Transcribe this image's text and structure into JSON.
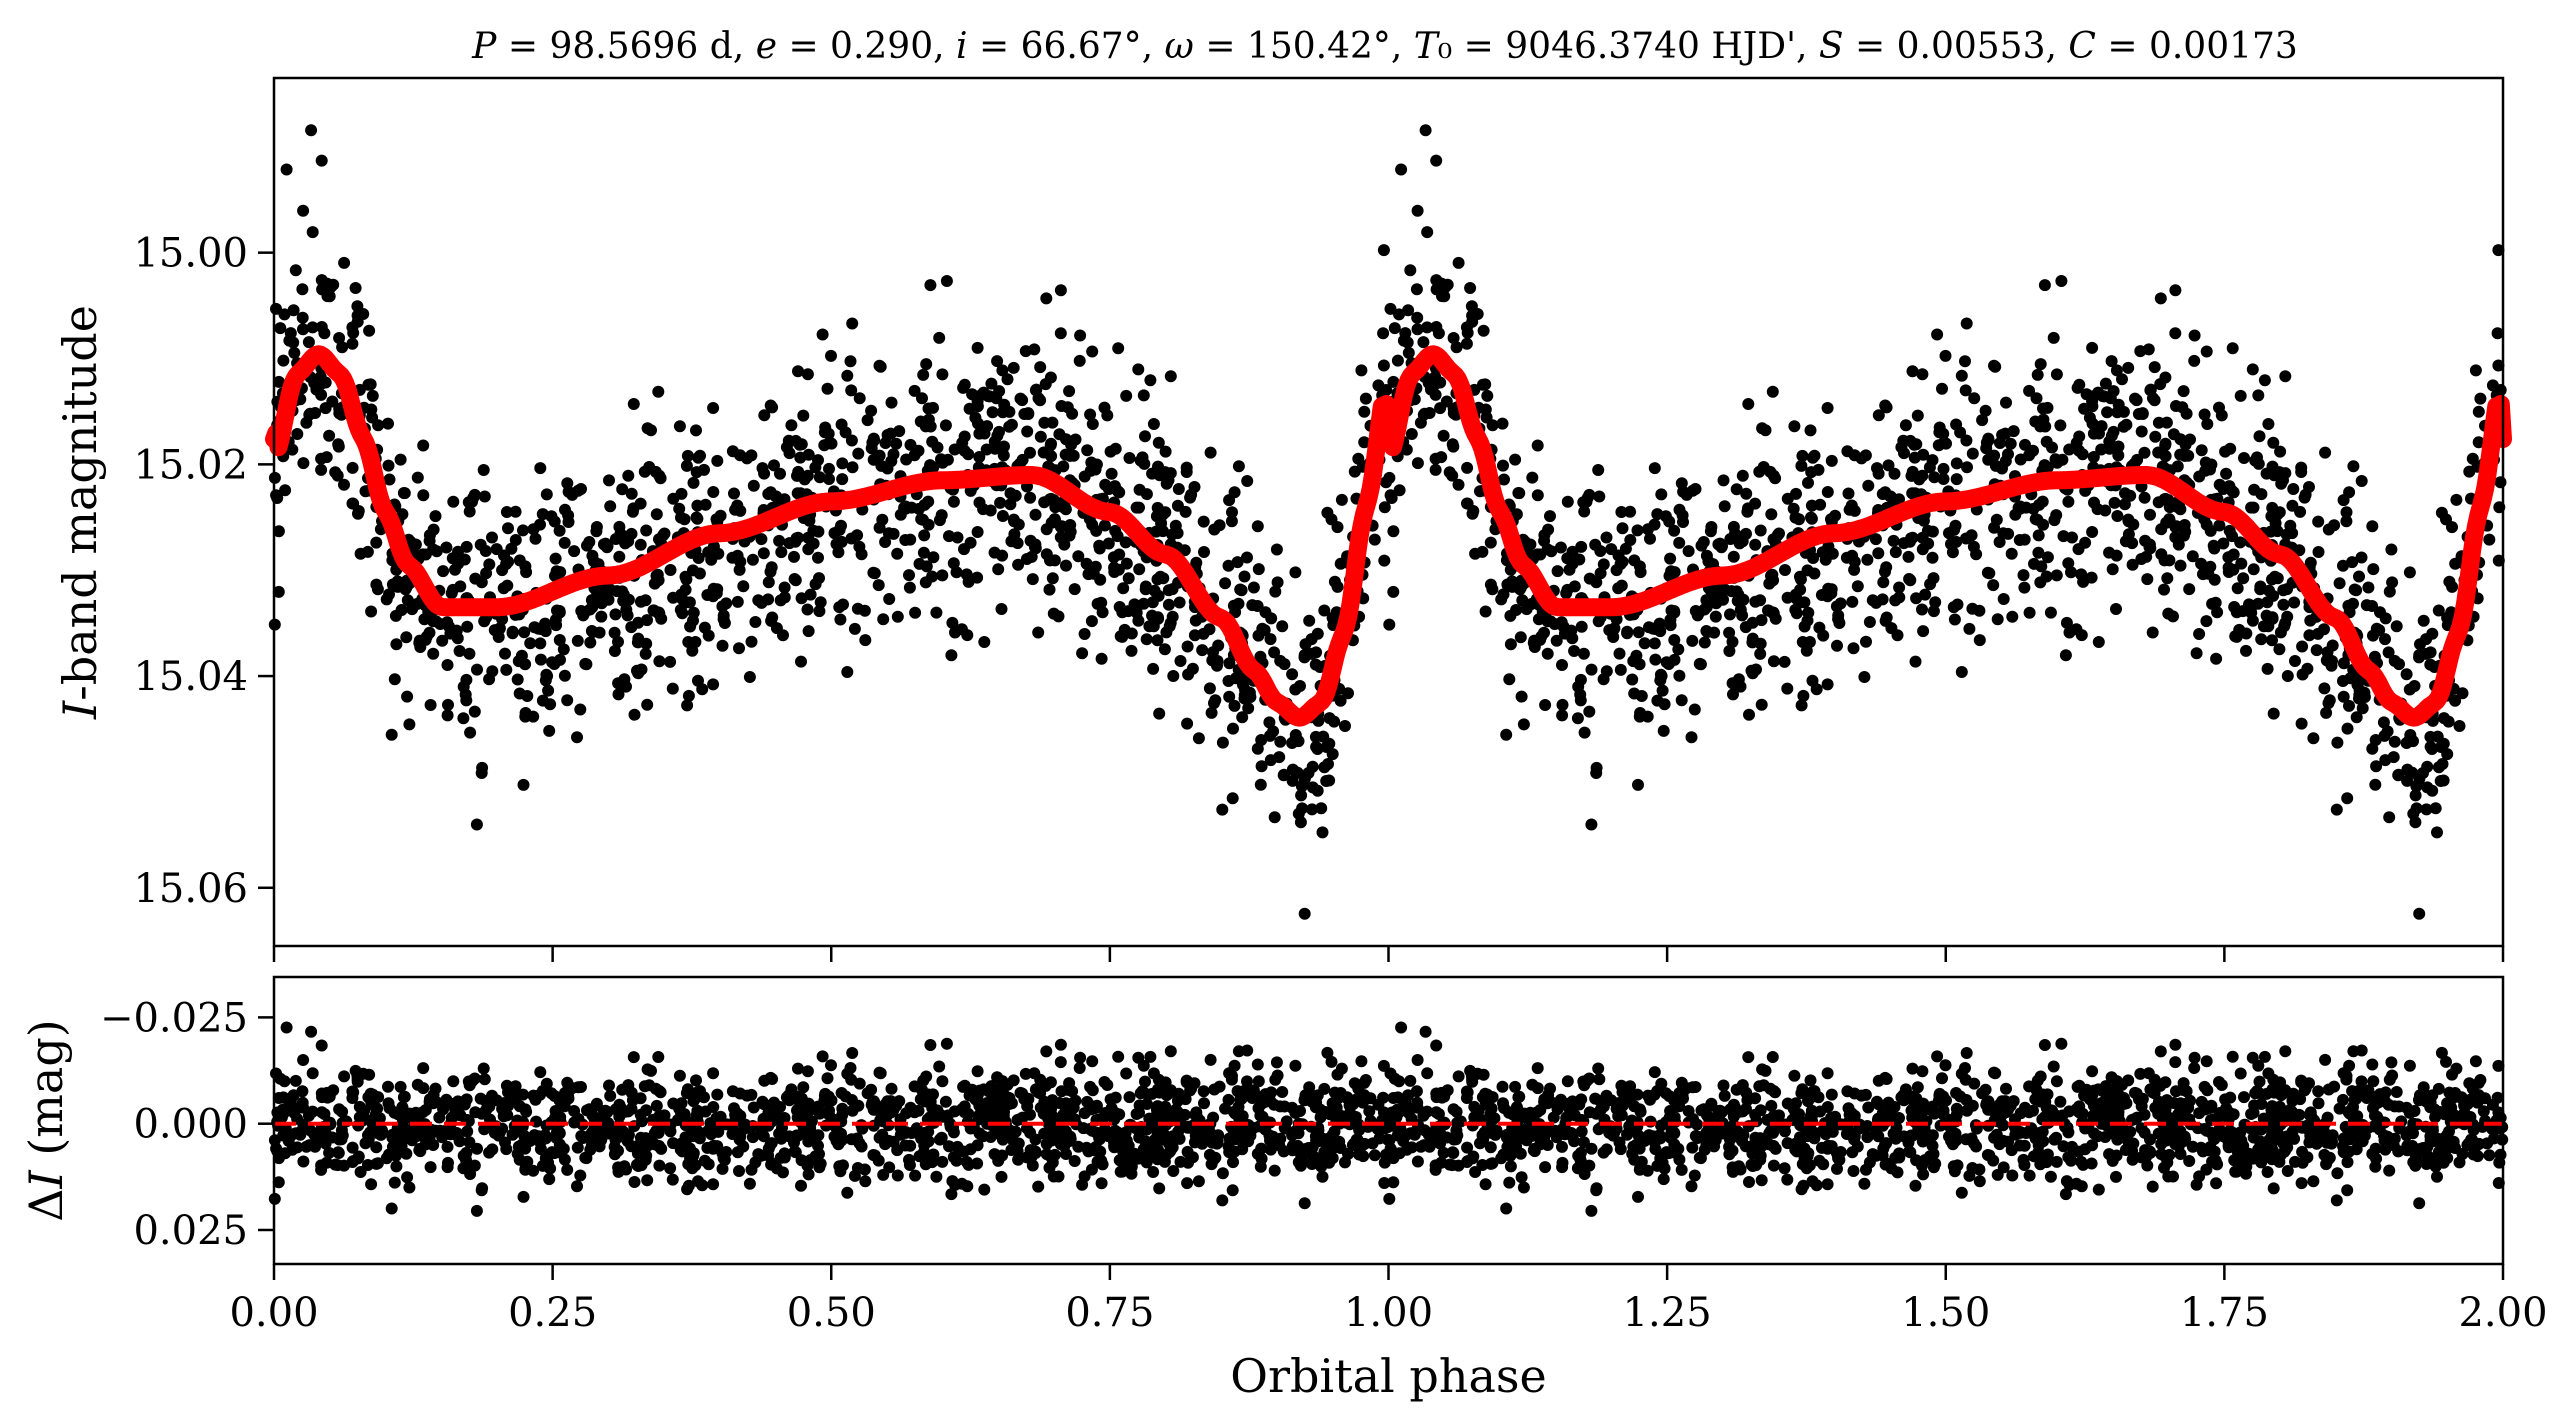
{
  "chart_data": [
    {
      "type": "scatter",
      "panel": "light-curve",
      "title": "P = 98.5696 d, e = 0.290, i = 66.67°, ω = 150.42°, T₀ = 9046.3740 HJD', S = 0.00553, C = 0.00173",
      "title_parts": {
        "P": "98.5696 d",
        "e": "0.290",
        "i": "66.67°",
        "omega": "150.42°",
        "T0": "9046.3740 HJD'",
        "S": "0.00553",
        "C": "0.00173"
      },
      "xlabel": "Orbital phase",
      "ylabel": "I-band magnitude",
      "ylabel_italic_part": "I",
      "ylabel_rest": "-band magnitude",
      "xlim": [
        0.0,
        2.0
      ],
      "ylim": [
        15.0655,
        14.9835
      ],
      "y_inverted": true,
      "yticks": [
        15.0,
        15.02,
        15.04,
        15.06
      ],
      "ytick_labels": [
        "15.00",
        "15.02",
        "15.04",
        "15.06"
      ],
      "xticks": [
        0.0,
        0.25,
        0.5,
        0.75,
        1.0,
        1.25,
        1.5,
        1.75,
        2.0
      ],
      "grid": false,
      "series": [
        {
          "kind": "points",
          "color": "#000000",
          "description": "observed I-band photometry phased on the orbital period, shown twice (phase 0-2)"
        },
        {
          "kind": "model",
          "color": "#ff0000",
          "phase": [
            0.0,
            0.02,
            0.04,
            0.06,
            0.08,
            0.1,
            0.12,
            0.15,
            0.2,
            0.3,
            0.4,
            0.5,
            0.6,
            0.68,
            0.75,
            0.8,
            0.85,
            0.88,
            0.9,
            0.92,
            0.94,
            0.96,
            0.98,
            1.0
          ],
          "magnitude": [
            15.0195,
            15.0115,
            15.0095,
            15.0115,
            15.0175,
            15.0245,
            15.0295,
            15.0335,
            15.0335,
            15.0305,
            15.0265,
            15.0235,
            15.0215,
            15.021,
            15.0245,
            15.0285,
            15.0345,
            15.0395,
            15.0425,
            15.044,
            15.0425,
            15.036,
            15.024,
            15.0115
          ]
        }
      ]
    },
    {
      "type": "scatter",
      "panel": "residuals",
      "xlabel": "Orbital phase",
      "ylabel": "ΔI (mag)",
      "ylabel_delta_part": "Δ",
      "ylabel_italic_part": "I",
      "ylabel_rest": " (mag)",
      "xlim": [
        0.0,
        2.0
      ],
      "ylim": [
        0.033,
        -0.0345
      ],
      "y_inverted": true,
      "yticks": [
        -0.025,
        0.0,
        0.025
      ],
      "ytick_labels": [
        "−0.025",
        "0.000",
        "0.025"
      ],
      "xticks": [
        0.0,
        0.25,
        0.5,
        0.75,
        1.0,
        1.25,
        1.5,
        1.75,
        2.0
      ],
      "xtick_labels": [
        "0.00",
        "0.25",
        "0.50",
        "0.75",
        "1.00",
        "1.25",
        "1.50",
        "1.75",
        "2.00"
      ],
      "grid": false,
      "series": [
        {
          "kind": "points",
          "color": "#000000",
          "description": "O-C residuals, scatter roughly ±0.02 mag"
        },
        {
          "kind": "zero-line",
          "color": "#ff0000",
          "style": "dashed",
          "value": 0.0
        }
      ]
    }
  ]
}
